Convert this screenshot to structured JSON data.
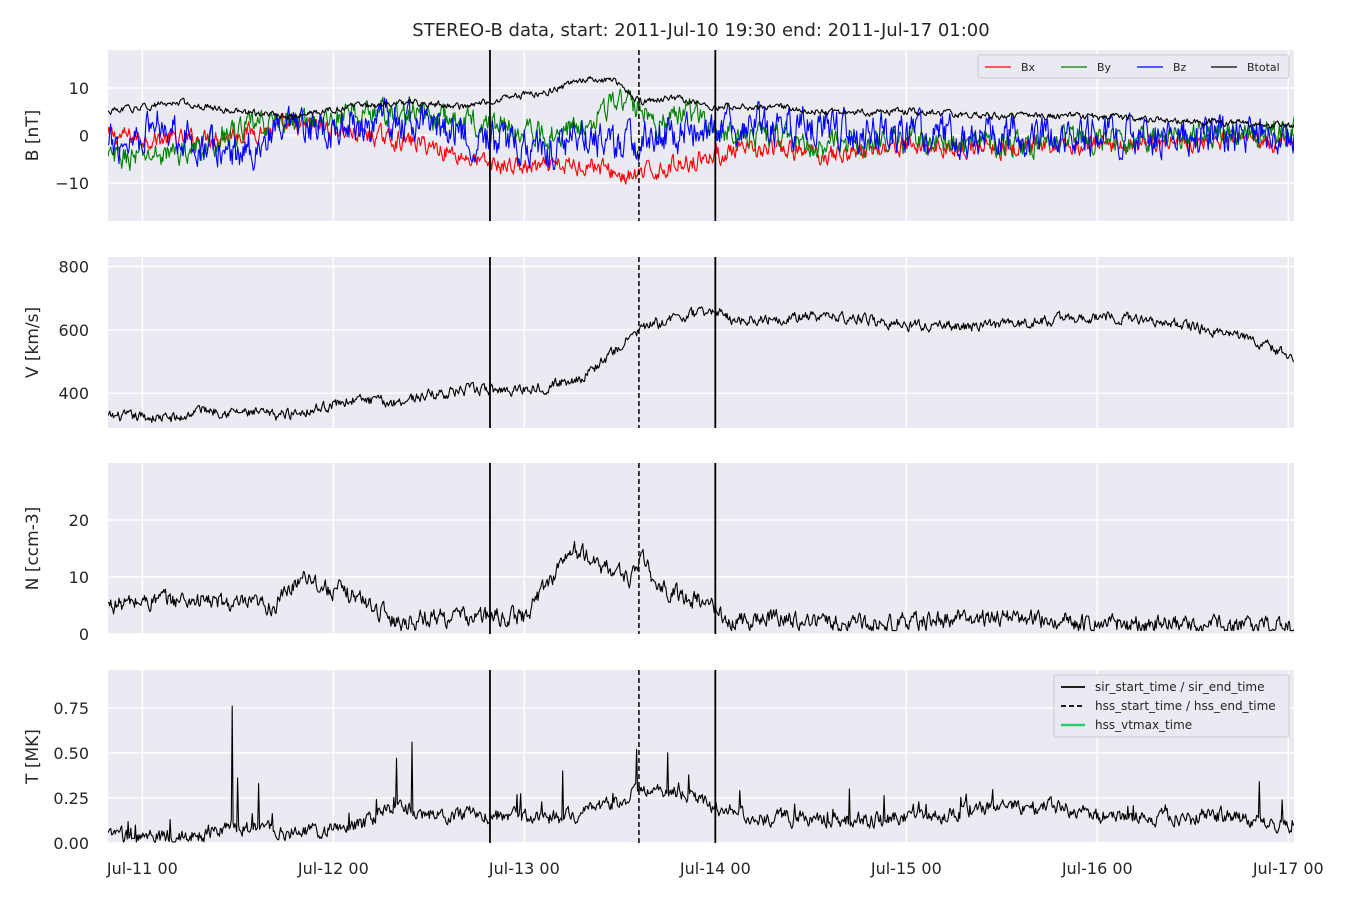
{
  "title": "STEREO-B data, start: 2011-Jul-10 19:30  end: 2011-Jul-17 01:00",
  "chart_data": {
    "type": "line",
    "x_unit": "days since Jul-11 00",
    "x_ticks": [
      "Jul-11 00",
      "Jul-12 00",
      "Jul-13 00",
      "Jul-14 00",
      "Jul-15 00",
      "Jul-16 00",
      "Jul-17 00"
    ],
    "xlim": [
      -0.18,
      6.03
    ],
    "vertical_lines": [
      {
        "name": "sir_start_time / sir_end_time",
        "style": "solid",
        "x": [
          1.82,
          3.0
        ]
      },
      {
        "name": "hss_start_time / hss_end_time",
        "style": "dashed",
        "x": [
          2.6
        ]
      }
    ],
    "panels": [
      {
        "ylabel": "B [nT]",
        "ylim": [
          -18,
          18
        ],
        "y_ticks": [
          -10,
          0,
          10
        ],
        "y_tick_labels": [
          "−10",
          "0",
          "10"
        ],
        "legend": {
          "placement": "top-right",
          "entries": [
            "Bx",
            "By",
            "Bz",
            "Btotal"
          ]
        },
        "series": [
          {
            "name": "Bx",
            "color": "#ff0000",
            "x": [
              -0.18,
              0.2,
              0.6,
              0.9,
              1.2,
              1.5,
              1.8,
              2.1,
              2.35,
              2.55,
              2.8,
              3.0,
              3.3,
              3.6,
              4.0,
              4.5,
              5.0,
              5.5,
              6.03
            ],
            "y": [
              0,
              -1,
              1,
              2,
              0,
              -2,
              -6,
              -7,
              -6,
              -9,
              -6,
              -4,
              -3,
              -4,
              -2,
              -3,
              -2,
              -1,
              -2
            ],
            "noise": 1.6
          },
          {
            "name": "By",
            "color": "#008000",
            "x": [
              -0.18,
              0.1,
              0.3,
              0.5,
              0.7,
              0.9,
              1.2,
              1.5,
              1.9,
              2.1,
              2.3,
              2.4,
              2.55,
              2.7,
              2.9,
              3.0,
              3.3,
              3.6,
              4.0,
              4.5,
              5.0,
              5.5,
              6.03
            ],
            "y": [
              -5,
              -4,
              -3,
              1,
              3,
              3,
              5,
              4,
              2,
              0,
              2,
              6,
              7,
              3,
              5,
              1,
              0,
              -2,
              -1,
              -2,
              -1,
              0,
              1
            ],
            "noise": 2.2
          },
          {
            "name": "Bz",
            "color": "#0000ff",
            "x": [
              -0.18,
              0.1,
              0.3,
              0.5,
              0.7,
              1.0,
              1.5,
              1.8,
              2.1,
              2.3,
              2.5,
              2.7,
              3.0,
              3.3,
              3.6,
              4.0,
              4.5,
              5.0,
              5.5,
              6.03
            ],
            "y": [
              -3,
              3,
              -2,
              -4,
              0,
              2,
              3,
              -1,
              -3,
              0,
              -2,
              0,
              1,
              2,
              1,
              0,
              0,
              0,
              0,
              -1
            ],
            "noise": 3.2
          },
          {
            "name": "Btotal",
            "color": "#000000",
            "x": [
              -0.18,
              0.0,
              0.2,
              0.5,
              0.8,
              1.1,
              1.4,
              1.7,
              1.9,
              2.1,
              2.35,
              2.5,
              2.6,
              2.8,
              3.0,
              3.3,
              3.6,
              4.0,
              4.5,
              5.0,
              5.5,
              6.03
            ],
            "y": [
              5,
              6,
              7,
              5,
              4,
              6,
              7,
              6,
              8,
              9,
              12,
              11,
              7,
              8,
              6,
              6,
              5,
              5,
              4,
              4,
              3,
              2
            ],
            "noise": 0.6
          }
        ]
      },
      {
        "ylabel": "V [km/s]",
        "ylim": [
          290,
          830
        ],
        "y_ticks": [
          400,
          600,
          800
        ],
        "y_tick_labels": [
          "400",
          "600",
          "800"
        ],
        "series": [
          {
            "name": "V",
            "color": "#000000",
            "x": [
              -0.18,
              0.0,
              0.2,
              0.3,
              0.5,
              0.7,
              0.9,
              1.1,
              1.3,
              1.5,
              1.7,
              1.9,
              2.1,
              2.3,
              2.45,
              2.6,
              2.8,
              3.0,
              3.1,
              3.4,
              3.7,
              4.0,
              4.3,
              4.6,
              4.9,
              5.1,
              5.3,
              5.6,
              5.8,
              6.03
            ],
            "y": [
              325,
              325,
              320,
              350,
              340,
              330,
              350,
              380,
              370,
              395,
              410,
              410,
              420,
              450,
              520,
              600,
              640,
              660,
              630,
              640,
              640,
              615,
              610,
              620,
              640,
              640,
              630,
              600,
              570,
              515
            ],
            "noise": 14
          }
        ]
      },
      {
        "ylabel": "N [ccm-3]",
        "ylim": [
          0,
          30
        ],
        "y_ticks": [
          0,
          10,
          20
        ],
        "y_tick_labels": [
          "0",
          "10",
          "20"
        ],
        "series": [
          {
            "name": "N",
            "color": "#000000",
            "x": [
              -0.18,
              0.1,
              0.3,
              0.5,
              0.7,
              0.85,
              0.95,
              1.1,
              1.2,
              1.35,
              1.5,
              1.8,
              2.0,
              2.1,
              2.25,
              2.4,
              2.55,
              2.62,
              2.7,
              2.9,
              3.0,
              3.05,
              3.3,
              3.6,
              4.0,
              4.5,
              5.0,
              5.5,
              6.03
            ],
            "y": [
              5,
              6,
              6,
              5,
              5,
              11,
              8,
              7,
              5,
              2,
              3,
              3,
              3,
              8,
              15,
              12,
              10,
              13,
              8,
              6,
              5,
              2,
              3,
              2,
              2,
              3,
              2,
              1.5,
              1.5
            ],
            "noise": 1.3
          }
        ]
      },
      {
        "ylabel": "T [MK]",
        "ylim": [
          0,
          0.96
        ],
        "y_ticks": [
          0.0,
          0.25,
          0.5,
          0.75
        ],
        "y_tick_labels": [
          "0.00",
          "0.25",
          "0.50",
          "0.75"
        ],
        "legend": {
          "placement": "top-right",
          "entries": [
            {
              "label": "sir_start_time / sir_end_time",
              "style": "solid",
              "color": "#000000"
            },
            {
              "label": "hss_start_time / hss_end_time",
              "style": "dashed",
              "color": "#000000"
            },
            {
              "label": "hss_vtmax_time",
              "style": "solid",
              "color": "#2ecc71"
            }
          ]
        },
        "spikes": [
          [
            0.47,
            0.76
          ],
          [
            0.5,
            0.36
          ],
          [
            0.61,
            0.33
          ],
          [
            1.33,
            0.47
          ],
          [
            1.41,
            0.56
          ],
          [
            2.2,
            0.4
          ],
          [
            2.59,
            0.52
          ],
          [
            2.75,
            0.5
          ],
          [
            3.7,
            0.3
          ],
          [
            5.85,
            0.34
          ]
        ],
        "series": [
          {
            "name": "T",
            "color": "#000000",
            "x": [
              -0.18,
              0.1,
              0.3,
              0.45,
              0.6,
              0.8,
              1.0,
              1.2,
              1.3,
              1.5,
              1.8,
              2.0,
              2.3,
              2.5,
              2.6,
              2.8,
              3.0,
              3.2,
              3.5,
              3.8,
              4.2,
              4.5,
              4.8,
              5.0,
              5.3,
              5.6,
              5.8,
              6.03
            ],
            "y": [
              0.04,
              0.03,
              0.05,
              0.1,
              0.08,
              0.06,
              0.07,
              0.12,
              0.2,
              0.16,
              0.16,
              0.14,
              0.15,
              0.22,
              0.3,
              0.28,
              0.2,
              0.14,
              0.14,
              0.13,
              0.15,
              0.2,
              0.2,
              0.15,
              0.14,
              0.16,
              0.13,
              0.1
            ],
            "noise": 0.035
          }
        ]
      }
    ]
  }
}
